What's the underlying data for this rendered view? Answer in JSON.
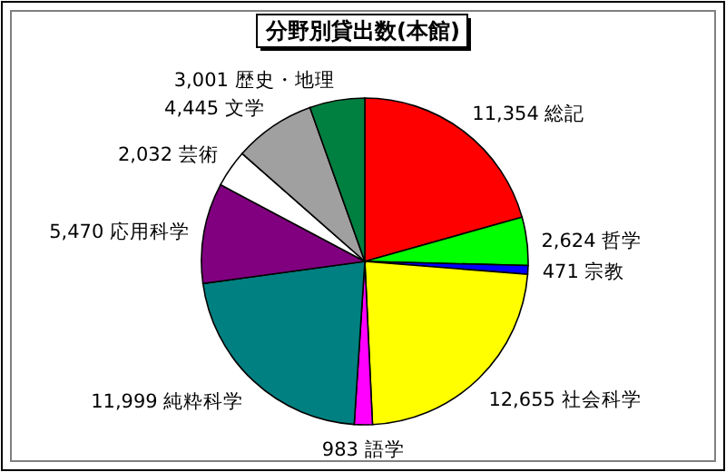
{
  "chart_data": {
    "type": "pie",
    "title": "分野別貸出数(本館)",
    "categories": [
      "総記",
      "哲学",
      "宗教",
      "社会科学",
      "語学",
      "純粋科学",
      "応用科学",
      "芸術",
      "文学",
      "歴史・地理"
    ],
    "values": [
      11354,
      2624,
      471,
      12655,
      983,
      11999,
      5470,
      2032,
      4445,
      3001
    ],
    "value_labels": [
      "11,354",
      "2,624",
      "471",
      "12,655",
      "983",
      "11,999",
      "5,470",
      "2,032",
      "4,445",
      "3,001"
    ],
    "colors": [
      "#ff0000",
      "#00ff00",
      "#0000ff",
      "#ffff00",
      "#ff00ff",
      "#008080",
      "#800080",
      "#ffffff",
      "#a0a0a0",
      "#008040"
    ]
  }
}
